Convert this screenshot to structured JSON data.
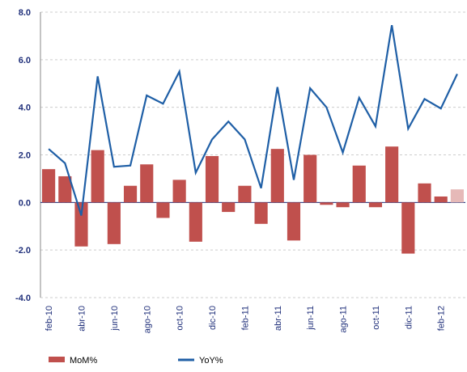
{
  "chart_data": {
    "type": "bar-line",
    "categories": [
      "feb-10",
      null,
      "abr-10",
      null,
      "jun-10",
      null,
      "ago-10",
      null,
      "oct-10",
      null,
      "dic-10",
      null,
      "feb-11",
      null,
      "abr-11",
      null,
      "jun-11",
      null,
      "ago-11",
      null,
      "oct-11",
      null,
      "dic-11",
      null,
      "feb-12",
      null
    ],
    "series": [
      {
        "name": "MoM%",
        "type": "bar",
        "color": "#c0504d",
        "point_colors": {
          "25": "#e6b9b8"
        },
        "values": [
          1.4,
          1.1,
          -1.85,
          2.2,
          -1.75,
          0.7,
          1.6,
          -0.65,
          0.95,
          -1.65,
          1.95,
          -0.4,
          0.7,
          -0.9,
          2.25,
          -1.6,
          2.0,
          -0.1,
          -0.2,
          1.55,
          -0.2,
          2.35,
          -2.15,
          0.8,
          0.25,
          0.55
        ]
      },
      {
        "name": "YoY%",
        "type": "line",
        "color": "#1f5fa6",
        "values": [
          2.25,
          1.65,
          -0.55,
          5.3,
          1.5,
          1.55,
          4.5,
          4.15,
          5.5,
          1.25,
          2.65,
          3.4,
          2.65,
          0.6,
          4.85,
          0.95,
          4.8,
          4.0,
          2.1,
          4.4,
          3.2,
          7.45,
          3.1,
          4.35,
          3.95,
          5.4
        ]
      }
    ],
    "ylim": [
      -4,
      8
    ],
    "yticks": [
      {
        "value": -4,
        "label": "-4.0"
      },
      {
        "value": -2,
        "label": "-2.0"
      },
      {
        "value": 0,
        "label": "0.0"
      },
      {
        "value": 2,
        "label": "2.0"
      },
      {
        "value": 4,
        "label": "4.0"
      },
      {
        "value": 6,
        "label": "6.0"
      },
      {
        "value": 8,
        "label": "8.0"
      }
    ],
    "grid": true
  }
}
